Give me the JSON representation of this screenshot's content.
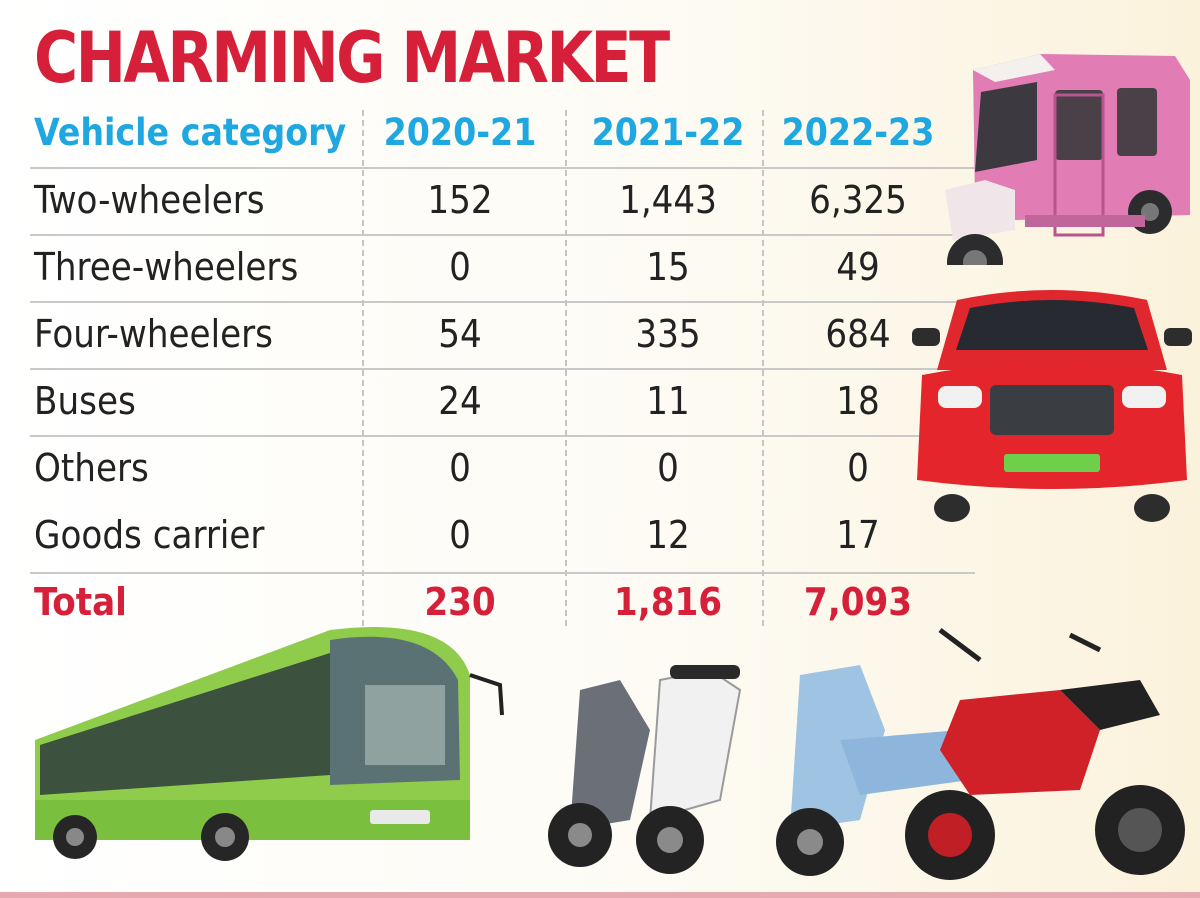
{
  "title": "CHARMING MARKET",
  "chart_data": {
    "type": "table",
    "title": "CHARMING MARKET",
    "columns": [
      "Vehicle category",
      "2020-21",
      "2021-22",
      "2022-23"
    ],
    "rows": [
      {
        "label": "Two-wheelers",
        "values": [
          "152",
          "1,443",
          "6,325"
        ]
      },
      {
        "label": "Three-wheelers",
        "values": [
          "0",
          "15",
          "49"
        ]
      },
      {
        "label": "Four-wheelers",
        "values": [
          "54",
          "335",
          "684"
        ]
      },
      {
        "label": "Buses",
        "values": [
          "24",
          "11",
          "18"
        ]
      },
      {
        "label": "Others",
        "values": [
          "0",
          "0",
          "0"
        ]
      },
      {
        "label": "Goods carrier",
        "values": [
          "0",
          "12",
          "17"
        ]
      }
    ],
    "total": {
      "label": "Total",
      "values": [
        "230",
        "1,816",
        "7,093"
      ]
    }
  },
  "colors": {
    "title": "#d6203a",
    "header": "#1ea7e1",
    "total": "#d6203a",
    "body_text": "#222222"
  },
  "illustrations": [
    "auto-rickshaw-illustration",
    "electric-car-illustration",
    "electric-bus-illustration",
    "electric-scooters-illustration"
  ]
}
